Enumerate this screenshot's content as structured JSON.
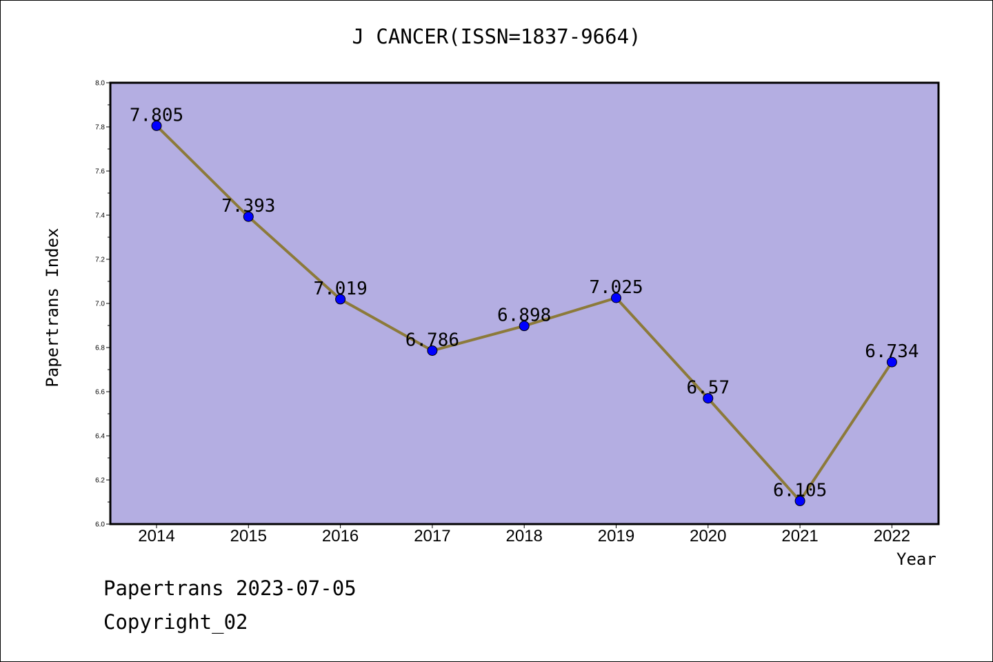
{
  "chart_data": {
    "type": "line",
    "title": "J CANCER(ISSN=1837-9664)",
    "xlabel": "Year",
    "ylabel": "Papertrans Index",
    "categories": [
      "2014",
      "2015",
      "2016",
      "2017",
      "2018",
      "2019",
      "2020",
      "2021",
      "2022"
    ],
    "values": [
      7.805,
      7.393,
      7.019,
      6.786,
      6.898,
      7.025,
      6.57,
      6.105,
      6.734
    ],
    "data_labels": [
      "7.805",
      "7.393",
      "7.019",
      "6.786",
      "6.898",
      "7.025",
      "6.57",
      "6.105",
      "6.734"
    ],
    "ylim": [
      6.0,
      8.0
    ],
    "yticks": [
      "6.0",
      "6.2",
      "6.4",
      "6.6",
      "6.8",
      "7.0",
      "7.2",
      "7.4",
      "7.6",
      "7.8",
      "8.0"
    ],
    "grid": false,
    "colors": {
      "plot_background": "#b4aee2",
      "line": "#8c7a3a",
      "marker": "#0000ff"
    }
  },
  "footer": {
    "date": "Papertrans 2023-07-05",
    "copyright": "Copyright_02"
  }
}
